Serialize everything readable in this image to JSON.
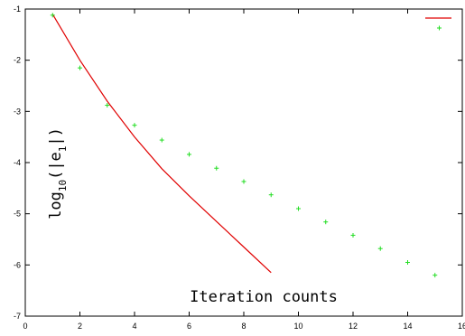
{
  "chart_data": {
    "type": "line",
    "xlabel": "Iteration counts",
    "ylabel_base": "log",
    "ylabel_sub": "10",
    "ylabel_arg_open": "(|e",
    "ylabel_arg_sub": "1",
    "ylabel_arg_close": "|)",
    "xlim": [
      0,
      16
    ],
    "ylim": [
      -7,
      -1
    ],
    "x_ticks": [
      "0",
      "2",
      "4",
      "6",
      "8",
      "10",
      "12",
      "14",
      "16"
    ],
    "y_ticks": [
      "-1",
      "-2",
      "-3",
      "-4",
      "-5",
      "-6",
      "-7"
    ],
    "grid": false,
    "legend": "top-right",
    "series": [
      {
        "style": "line",
        "color": "#e00000",
        "x": [
          1,
          2,
          3,
          4,
          5,
          6,
          7,
          8,
          9
        ],
        "y": [
          -1.1,
          -2.0,
          -2.8,
          -3.5,
          -4.12,
          -4.65,
          -5.15,
          -5.65,
          -6.15
        ]
      },
      {
        "style": "points",
        "marker": "plus",
        "color": "#22dd22",
        "x": [
          1,
          2,
          3,
          4,
          5,
          6,
          7,
          8,
          9,
          10,
          11,
          12,
          13,
          14,
          15
        ],
        "y": [
          -1.12,
          -2.15,
          -2.88,
          -3.27,
          -3.56,
          -3.84,
          -4.11,
          -4.37,
          -4.63,
          -4.9,
          -5.16,
          -5.42,
          -5.68,
          -5.95,
          -6.2
        ]
      }
    ]
  }
}
